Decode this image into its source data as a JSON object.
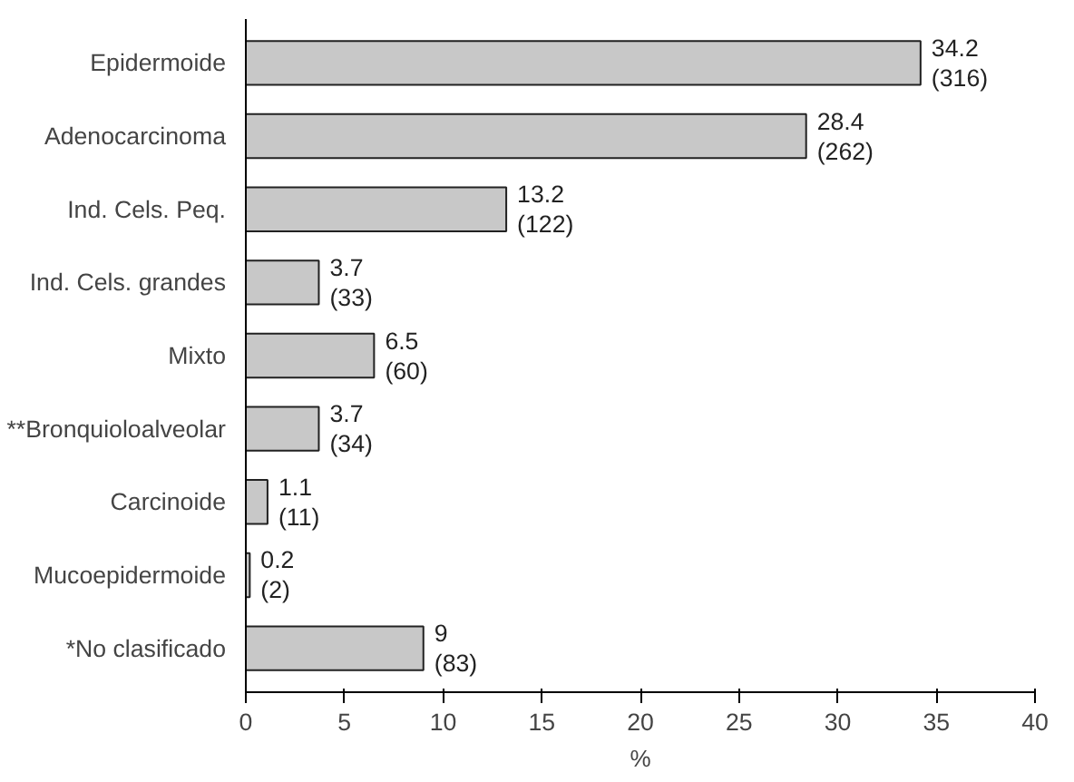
{
  "chart_data": {
    "type": "bar",
    "orientation": "horizontal",
    "categories": [
      "Epidermoide",
      "Adenocarcinoma",
      "Ind. Cels. Peq.",
      "Ind. Cels. grandes",
      "Mixto",
      "**Bronquioloalveolar",
      "Carcinoide",
      "Mucoepidermoide",
      "*No clasificado"
    ],
    "values": [
      34.2,
      28.4,
      13.2,
      3.7,
      6.5,
      3.7,
      1.1,
      0.2,
      9
    ],
    "value_labels": [
      "34.2\n(316)",
      "28.4\n(262)",
      "13.2\n(122)",
      "3.7\n(33)",
      "6.5\n(60)",
      "3.7\n(34)",
      "1.1\n(11)",
      "0.2\n(2)",
      "9\n(83)"
    ],
    "color": "#c8c8c8",
    "xlim": [
      0,
      40
    ],
    "xticks": [
      0,
      5,
      10,
      15,
      20,
      25,
      30,
      35,
      40
    ],
    "xlabel": "%",
    "grid": false
  }
}
